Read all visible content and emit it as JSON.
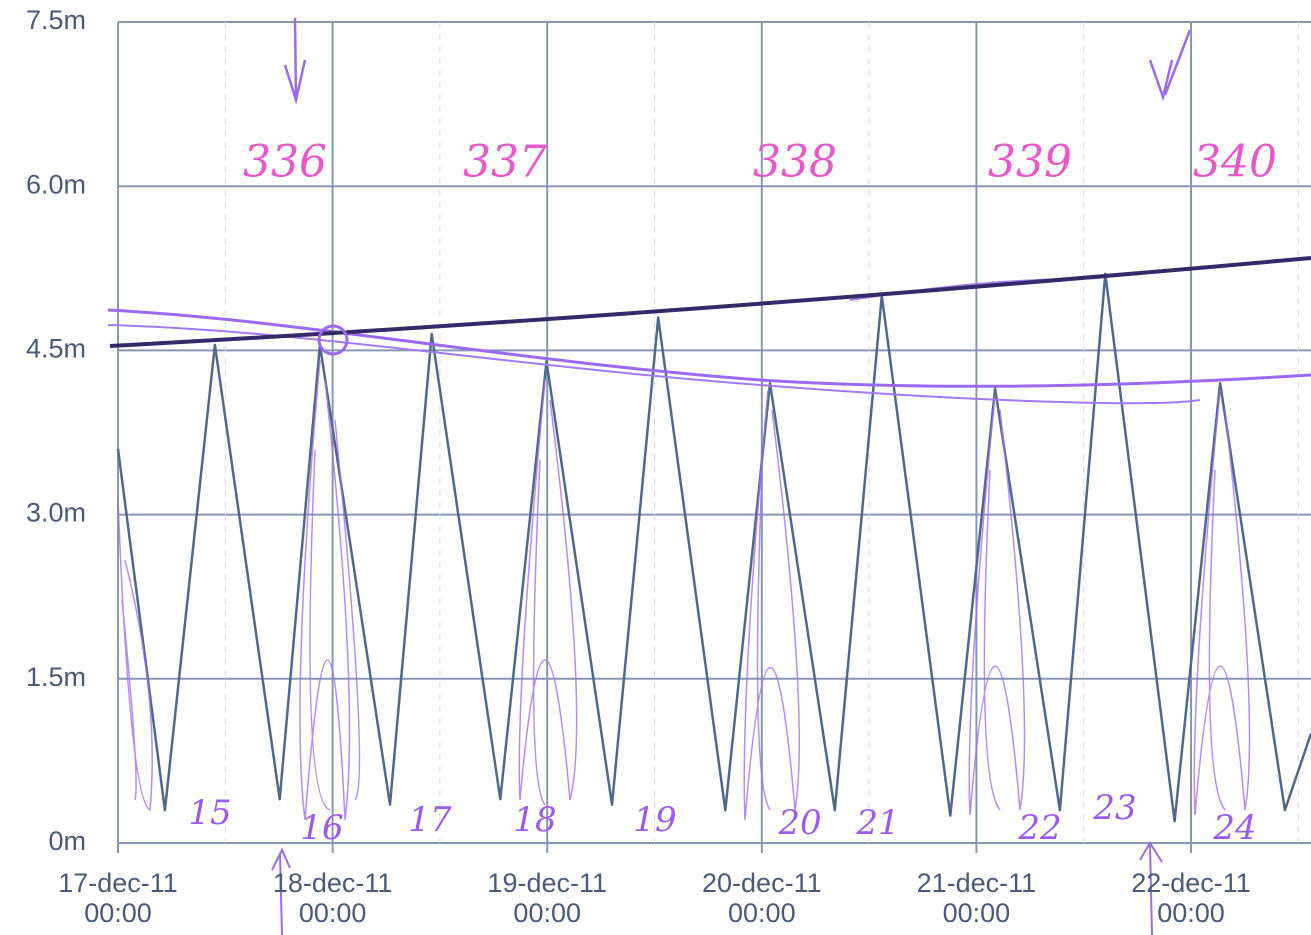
{
  "chart_data": {
    "type": "line",
    "ylim": [
      0,
      7.5
    ],
    "yticks": [
      {
        "value": 0,
        "label": "0m"
      },
      {
        "value": 1.5,
        "label": "1.5m"
      },
      {
        "value": 3.0,
        "label": "3.0m"
      },
      {
        "value": 4.5,
        "label": "4.5m"
      },
      {
        "value": 6.0,
        "label": "6.0m"
      },
      {
        "value": 7.5,
        "label": "7.5m"
      }
    ],
    "xlim": [
      "2011-12-17T00:00",
      "2011-12-22T13:25"
    ],
    "xticks": [
      {
        "value": "2011-12-17T00:00",
        "label": [
          "17-dec-11",
          "00:00"
        ]
      },
      {
        "value": "2011-12-18T00:00",
        "label": [
          "18-dec-11",
          "00:00"
        ]
      },
      {
        "value": "2011-12-19T00:00",
        "label": [
          "19-dec-11",
          "00:00"
        ]
      },
      {
        "value": "2011-12-20T00:00",
        "label": [
          "20-dec-11",
          "00:00"
        ]
      },
      {
        "value": "2011-12-21T00:00",
        "label": [
          "21-dec-11",
          "00:00"
        ]
      },
      {
        "value": "2011-12-22T00:00",
        "label": [
          "22-dec-11",
          "00:00"
        ]
      }
    ],
    "grid": true,
    "color": "#52688a",
    "x": [
      "2011-12-17T00:00",
      "2011-12-17T05:15",
      "2011-12-17T10:50",
      "2011-12-17T18:05",
      "2011-12-17T22:35",
      "2011-12-18T06:25",
      "2011-12-18T11:05",
      "2011-12-18T18:45",
      "2011-12-18T23:55",
      "2011-12-19T07:15",
      "2011-12-19T12:25",
      "2011-12-19T19:55",
      "2011-12-20T00:55",
      "2011-12-20T08:10",
      "2011-12-20T13:25",
      "2011-12-20T21:05",
      "2011-12-21T02:05",
      "2011-12-21T09:20",
      "2011-12-21T14:25",
      "2011-12-21T22:10",
      "2011-12-22T03:15",
      "2011-12-22T10:30",
      "2011-12-22T13:25"
    ],
    "values": [
      3.6,
      0.3,
      4.55,
      0.4,
      4.55,
      0.35,
      4.65,
      0.4,
      4.4,
      0.35,
      4.8,
      0.3,
      4.2,
      0.3,
      5.0,
      0.25,
      4.15,
      0.3,
      5.2,
      0.2,
      4.2,
      0.3,
      1.0
    ],
    "annotations": [
      "336",
      "337",
      "338",
      "339",
      "340",
      "15",
      "16",
      "17",
      "18",
      "19",
      "20",
      "21",
      "22",
      "23",
      "24"
    ]
  }
}
